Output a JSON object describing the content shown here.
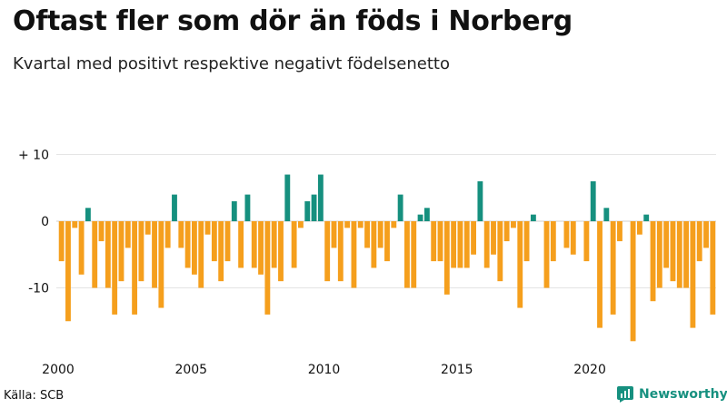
{
  "chart_data": {
    "type": "bar",
    "title": "Oftast fler som dör än föds i Norberg",
    "subtitle": "Kvartal med positivt respektive negativt födelsenetto",
    "xlabel": "",
    "ylabel": "",
    "ylim": [
      -18,
      10
    ],
    "y_ticks": [
      {
        "value": 10,
        "label": "+ 10"
      },
      {
        "value": 0,
        "label": "0"
      },
      {
        "value": -10,
        "label": "-10"
      }
    ],
    "x_ticks": [
      {
        "value": 2000,
        "label": "2000"
      },
      {
        "value": 2005,
        "label": "2005"
      },
      {
        "value": 2010,
        "label": "2010"
      },
      {
        "value": 2015,
        "label": "2015"
      },
      {
        "value": 2020,
        "label": "2020"
      }
    ],
    "x_start": 2000,
    "periods_per_year": 4,
    "positive_color": "#16907f",
    "negative_color": "#f59f1d",
    "values": [
      -6,
      -15,
      -1,
      -8,
      2,
      -10,
      -3,
      -10,
      -14,
      -9,
      -4,
      -14,
      -9,
      -2,
      -10,
      -13,
      -4,
      4,
      -4,
      -7,
      -8,
      -10,
      -2,
      -6,
      -9,
      -6,
      3,
      -7,
      4,
      -7,
      -8,
      -14,
      -7,
      -9,
      7,
      -7,
      -1,
      3,
      4,
      7,
      -9,
      -4,
      -9,
      -1,
      -10,
      -1,
      -4,
      -7,
      -4,
      -6,
      -1,
      4,
      -10,
      -10,
      1,
      2,
      -6,
      -6,
      -11,
      -7,
      -7,
      -7,
      -5,
      6,
      -7,
      -5,
      -9,
      -3,
      -1,
      -13,
      -6,
      1,
      0,
      -10,
      -6,
      0,
      -4,
      -5,
      0,
      -6,
      6,
      -16,
      2,
      -14,
      -3,
      0,
      -18,
      -2,
      1,
      -12,
      -10,
      -7,
      -9,
      -10,
      -10,
      -16,
      -6,
      -4,
      -14
    ]
  },
  "footer": {
    "source": "Källa: SCB",
    "brand": "Newsworthy"
  }
}
